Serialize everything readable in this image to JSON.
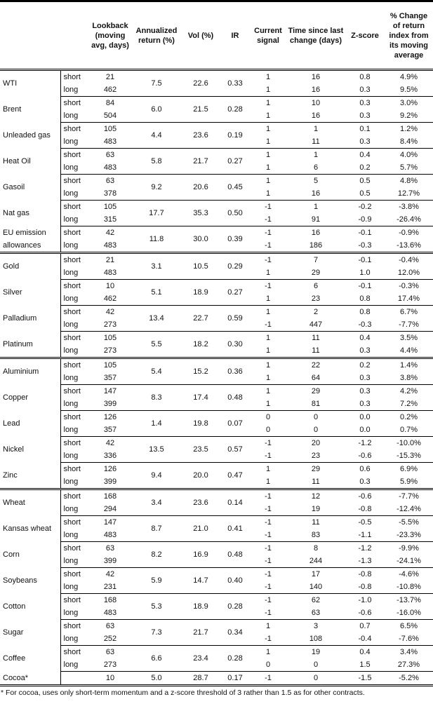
{
  "headers": [
    "",
    "",
    "Lookback (moving avg, days)",
    "Annualized return (%)",
    "Vol (%)",
    "IR",
    "Current signal",
    "Time since last change (days)",
    "Z-score",
    "% Change of return index from its moving average"
  ],
  "groups": [
    [
      {
        "name": "WTI",
        "annual": "7.5",
        "vol": "22.6",
        "ir": "0.33",
        "rows": [
          {
            "type": "short",
            "lookback": "21",
            "signal": "1",
            "days": "16",
            "z": "0.8",
            "pct": "4.9%"
          },
          {
            "type": "long",
            "lookback": "462",
            "signal": "1",
            "days": "16",
            "z": "0.3",
            "pct": "9.5%"
          }
        ]
      },
      {
        "name": "Brent",
        "annual": "6.0",
        "vol": "21.5",
        "ir": "0.28",
        "rows": [
          {
            "type": "short",
            "lookback": "84",
            "signal": "1",
            "days": "10",
            "z": "0.3",
            "pct": "3.0%"
          },
          {
            "type": "long",
            "lookback": "504",
            "signal": "1",
            "days": "16",
            "z": "0.3",
            "pct": "9.2%"
          }
        ]
      },
      {
        "name": "Unleaded gas",
        "annual": "4.4",
        "vol": "23.6",
        "ir": "0.19",
        "rows": [
          {
            "type": "short",
            "lookback": "105",
            "signal": "1",
            "days": "1",
            "z": "0.1",
            "pct": "1.2%"
          },
          {
            "type": "long",
            "lookback": "483",
            "signal": "1",
            "days": "11",
            "z": "0.3",
            "pct": "8.4%"
          }
        ]
      },
      {
        "name": "Heat Oil",
        "annual": "5.8",
        "vol": "21.7",
        "ir": "0.27",
        "rows": [
          {
            "type": "short",
            "lookback": "63",
            "signal": "1",
            "days": "1",
            "z": "0.4",
            "pct": "4.0%"
          },
          {
            "type": "long",
            "lookback": "483",
            "signal": "1",
            "days": "6",
            "z": "0.2",
            "pct": "5.7%"
          }
        ]
      },
      {
        "name": "Gasoil",
        "annual": "9.2",
        "vol": "20.6",
        "ir": "0.45",
        "rows": [
          {
            "type": "short",
            "lookback": "63",
            "signal": "1",
            "days": "5",
            "z": "0.5",
            "pct": "4.8%"
          },
          {
            "type": "long",
            "lookback": "378",
            "signal": "1",
            "days": "16",
            "z": "0.5",
            "pct": "12.7%"
          }
        ]
      },
      {
        "name": "Nat gas",
        "annual": "17.7",
        "vol": "35.3",
        "ir": "0.50",
        "rows": [
          {
            "type": "short",
            "lookback": "105",
            "signal": "-1",
            "days": "1",
            "z": "-0.2",
            "pct": "-3.8%"
          },
          {
            "type": "long",
            "lookback": "315",
            "signal": "-1",
            "days": "91",
            "z": "-0.9",
            "pct": "-26.4%"
          }
        ]
      },
      {
        "name": "EU emission allowances",
        "annual": "11.8",
        "vol": "30.0",
        "ir": "0.39",
        "rows": [
          {
            "type": "short",
            "lookback": "42",
            "signal": "-1",
            "days": "16",
            "z": "-0.1",
            "pct": "-0.9%"
          },
          {
            "type": "long",
            "lookback": "483",
            "signal": "-1",
            "days": "186",
            "z": "-0.3",
            "pct": "-13.6%"
          }
        ]
      }
    ],
    [
      {
        "name": "Gold",
        "annual": "3.1",
        "vol": "10.5",
        "ir": "0.29",
        "rows": [
          {
            "type": "short",
            "lookback": "21",
            "signal": "-1",
            "days": "7",
            "z": "-0.1",
            "pct": "-0.4%"
          },
          {
            "type": "long",
            "lookback": "483",
            "signal": "1",
            "days": "29",
            "z": "1.0",
            "pct": "12.0%"
          }
        ]
      },
      {
        "name": "Silver",
        "annual": "5.1",
        "vol": "18.9",
        "ir": "0.27",
        "rows": [
          {
            "type": "short",
            "lookback": "10",
            "signal": "-1",
            "days": "6",
            "z": "-0.1",
            "pct": "-0.3%"
          },
          {
            "type": "long",
            "lookback": "462",
            "signal": "1",
            "days": "23",
            "z": "0.8",
            "pct": "17.4%"
          }
        ]
      },
      {
        "name": "Palladium",
        "annual": "13.4",
        "vol": "22.7",
        "ir": "0.59",
        "rows": [
          {
            "type": "short",
            "lookback": "42",
            "signal": "1",
            "days": "2",
            "z": "0.8",
            "pct": "6.7%"
          },
          {
            "type": "long",
            "lookback": "273",
            "signal": "-1",
            "days": "447",
            "z": "-0.3",
            "pct": "-7.7%"
          }
        ]
      },
      {
        "name": "Platinum",
        "annual": "5.5",
        "vol": "18.2",
        "ir": "0.30",
        "rows": [
          {
            "type": "short",
            "lookback": "105",
            "signal": "1",
            "days": "11",
            "z": "0.4",
            "pct": "3.5%"
          },
          {
            "type": "long",
            "lookback": "273",
            "signal": "1",
            "days": "11",
            "z": "0.3",
            "pct": "4.4%"
          }
        ]
      }
    ],
    [
      {
        "name": "Aluminium",
        "annual": "5.4",
        "vol": "15.2",
        "ir": "0.36",
        "rows": [
          {
            "type": "short",
            "lookback": "105",
            "signal": "1",
            "days": "22",
            "z": "0.2",
            "pct": "1.4%"
          },
          {
            "type": "long",
            "lookback": "357",
            "signal": "1",
            "days": "64",
            "z": "0.3",
            "pct": "3.8%"
          }
        ]
      },
      {
        "name": "Copper",
        "annual": "8.3",
        "vol": "17.4",
        "ir": "0.48",
        "rows": [
          {
            "type": "short",
            "lookback": "147",
            "signal": "1",
            "days": "29",
            "z": "0.3",
            "pct": "4.2%"
          },
          {
            "type": "long",
            "lookback": "399",
            "signal": "1",
            "days": "81",
            "z": "0.3",
            "pct": "7.2%"
          }
        ]
      },
      {
        "name": "Lead",
        "annual": "1.4",
        "vol": "19.8",
        "ir": "0.07",
        "rows": [
          {
            "type": "short",
            "lookback": "126",
            "signal": "0",
            "days": "0",
            "z": "0.0",
            "pct": "0.2%"
          },
          {
            "type": "long",
            "lookback": "357",
            "signal": "0",
            "days": "0",
            "z": "0.0",
            "pct": "0.7%"
          }
        ]
      },
      {
        "name": "Nickel",
        "annual": "13.5",
        "vol": "23.5",
        "ir": "0.57",
        "rows": [
          {
            "type": "short",
            "lookback": "42",
            "signal": "-1",
            "days": "20",
            "z": "-1.2",
            "pct": "-10.0%"
          },
          {
            "type": "long",
            "lookback": "336",
            "signal": "-1",
            "days": "23",
            "z": "-0.6",
            "pct": "-15.3%"
          }
        ]
      },
      {
        "name": "Zinc",
        "annual": "9.4",
        "vol": "20.0",
        "ir": "0.47",
        "rows": [
          {
            "type": "short",
            "lookback": "126",
            "signal": "1",
            "days": "29",
            "z": "0.6",
            "pct": "6.9%"
          },
          {
            "type": "long",
            "lookback": "399",
            "signal": "1",
            "days": "11",
            "z": "0.3",
            "pct": "5.9%"
          }
        ]
      }
    ],
    [
      {
        "name": "Wheat",
        "annual": "3.4",
        "vol": "23.6",
        "ir": "0.14",
        "rows": [
          {
            "type": "short",
            "lookback": "168",
            "signal": "-1",
            "days": "12",
            "z": "-0.6",
            "pct": "-7.7%"
          },
          {
            "type": "long",
            "lookback": "294",
            "signal": "-1",
            "days": "19",
            "z": "-0.8",
            "pct": "-12.4%"
          }
        ]
      },
      {
        "name": "Kansas wheat",
        "annual": "8.7",
        "vol": "21.0",
        "ir": "0.41",
        "rows": [
          {
            "type": "short",
            "lookback": "147",
            "signal": "-1",
            "days": "11",
            "z": "-0.5",
            "pct": "-5.5%"
          },
          {
            "type": "long",
            "lookback": "483",
            "signal": "-1",
            "days": "83",
            "z": "-1.1",
            "pct": "-23.3%"
          }
        ]
      },
      {
        "name": "Corn",
        "annual": "8.2",
        "vol": "16.9",
        "ir": "0.48",
        "rows": [
          {
            "type": "short",
            "lookback": "63",
            "signal": "-1",
            "days": "8",
            "z": "-1.2",
            "pct": "-9.9%"
          },
          {
            "type": "long",
            "lookback": "399",
            "signal": "-1",
            "days": "244",
            "z": "-1.3",
            "pct": "-24.1%"
          }
        ]
      },
      {
        "name": "Soybeans",
        "annual": "5.9",
        "vol": "14.7",
        "ir": "0.40",
        "rows": [
          {
            "type": "short",
            "lookback": "42",
            "signal": "-1",
            "days": "17",
            "z": "-0.8",
            "pct": "-4.6%"
          },
          {
            "type": "long",
            "lookback": "231",
            "signal": "-1",
            "days": "140",
            "z": "-0.8",
            "pct": "-10.8%"
          }
        ]
      },
      {
        "name": "Cotton",
        "annual": "5.3",
        "vol": "18.9",
        "ir": "0.28",
        "rows": [
          {
            "type": "short",
            "lookback": "168",
            "signal": "-1",
            "days": "62",
            "z": "-1.0",
            "pct": "-13.7%"
          },
          {
            "type": "long",
            "lookback": "483",
            "signal": "-1",
            "days": "63",
            "z": "-0.6",
            "pct": "-16.0%"
          }
        ]
      },
      {
        "name": "Sugar",
        "annual": "7.3",
        "vol": "21.7",
        "ir": "0.34",
        "rows": [
          {
            "type": "short",
            "lookback": "63",
            "signal": "1",
            "days": "3",
            "z": "0.7",
            "pct": "6.5%"
          },
          {
            "type": "long",
            "lookback": "252",
            "signal": "-1",
            "days": "108",
            "z": "-0.4",
            "pct": "-7.6%"
          }
        ]
      },
      {
        "name": "Coffee",
        "annual": "6.6",
        "vol": "23.4",
        "ir": "0.28",
        "rows": [
          {
            "type": "short",
            "lookback": "63",
            "signal": "1",
            "days": "19",
            "z": "0.4",
            "pct": "3.4%"
          },
          {
            "type": "long",
            "lookback": "273",
            "signal": "0",
            "days": "0",
            "z": "1.5",
            "pct": "27.3%"
          }
        ]
      },
      {
        "name": "Cocoa*",
        "annual": "5.0",
        "vol": "28.7",
        "ir": "0.17",
        "rows": [
          {
            "type": "",
            "lookback": "10",
            "signal": "-1",
            "days": "0",
            "z": "-1.5",
            "pct": "-5.2%"
          }
        ]
      }
    ]
  ],
  "footnote": "* For cocoa, uses only short-term momentum and a z-score threshold of 3 rather than 1.5 as for other contracts."
}
